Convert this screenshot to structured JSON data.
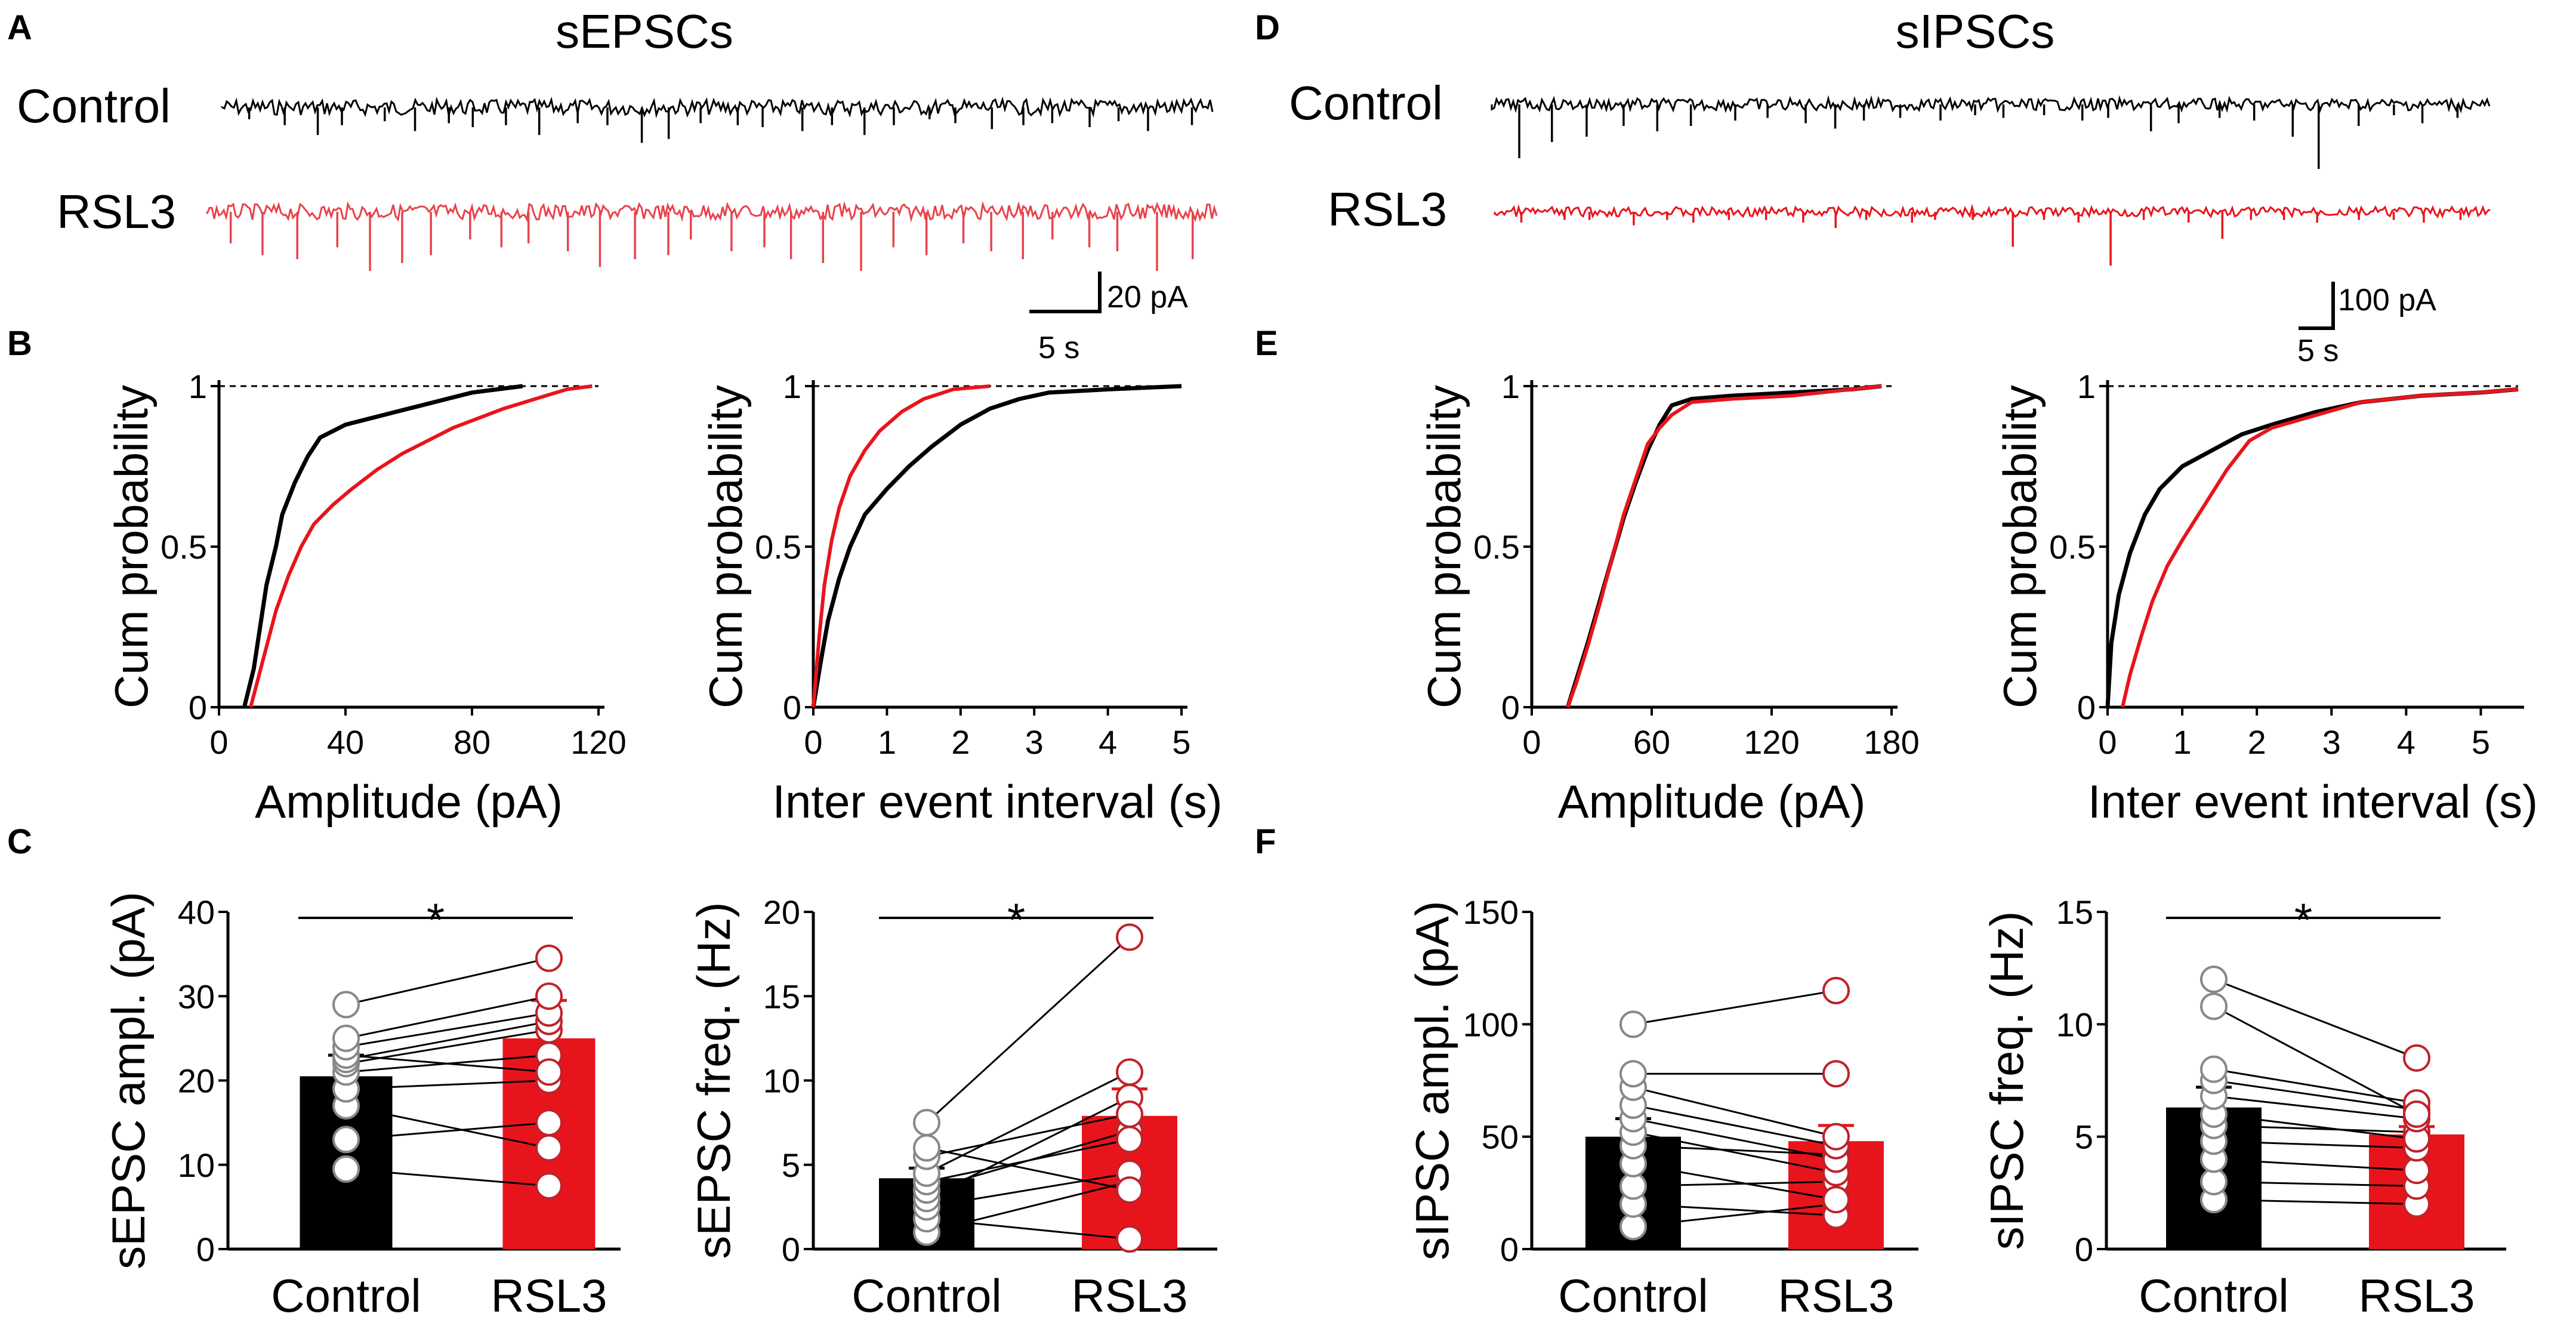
{
  "colors": {
    "control": "#000000",
    "rsl3_exc": "#e8434b",
    "rsl3_inh": "#e8141c",
    "dot_rsl3": "#c0222a"
  },
  "chart_data": [
    {
      "id": "A",
      "type": "trace",
      "panel_label": "A",
      "title": "sEPSCs",
      "traces": [
        {
          "name": "Control",
          "baseline_pA": 0,
          "event_amplitudes_pA": [
            6,
            9,
            14,
            9,
            7,
            12,
            8,
            10,
            9,
            14,
            8,
            9,
            18,
            16,
            8,
            9,
            10,
            12,
            9,
            14,
            9,
            6,
            8,
            11,
            9,
            8,
            10,
            7,
            12,
            9
          ]
        },
        {
          "name": "RSL3",
          "baseline_pA": 0,
          "event_amplitudes_pA": [
            16,
            22,
            24,
            18,
            30,
            26,
            22,
            14,
            18,
            16,
            20,
            28,
            24,
            22,
            14,
            20,
            18,
            24,
            26,
            30,
            18,
            22,
            16,
            20,
            24,
            14,
            18,
            20,
            30,
            24
          ]
        }
      ],
      "scalebar": {
        "amplitude": "20 pA",
        "time": "5 s"
      }
    },
    {
      "id": "D",
      "type": "trace",
      "panel_label": "D",
      "title": "sIPSCs",
      "traces": [
        {
          "name": "Control",
          "baseline_pA": 0,
          "event_amplitudes_pA": [
            100,
            70,
            60,
            40,
            50,
            40,
            30,
            25,
            35,
            45,
            30,
            25,
            30,
            20,
            25,
            20,
            30,
            25,
            50,
            35,
            25,
            30,
            60,
            120,
            40,
            20,
            35,
            25
          ]
        },
        {
          "name": "RSL3",
          "baseline_pA": 0,
          "event_amplitudes_pA": [
            20,
            15,
            15,
            25,
            15,
            20,
            15,
            15,
            20,
            30,
            15,
            20,
            15,
            15,
            65,
            15,
            20,
            100,
            15,
            20,
            50,
            15,
            15,
            20,
            15,
            15,
            20,
            15
          ]
        }
      ],
      "scalebar": {
        "amplitude": "100 pA",
        "time": "5 s"
      }
    },
    {
      "id": "B1",
      "type": "line",
      "panel_label": "B",
      "xlabel": "Amplitude (pA)",
      "ylabel": "Cum probability",
      "xlim": [
        0,
        120
      ],
      "ylim": [
        0,
        1
      ],
      "xticks": [
        "0",
        "40",
        "80",
        "120"
      ],
      "yticks": [
        "0",
        "0.5",
        "1"
      ],
      "series": [
        {
          "name": "Control",
          "x": [
            8,
            11,
            13,
            15,
            18,
            20,
            24,
            28,
            32,
            40,
            48,
            56,
            64,
            72,
            80,
            88,
            96
          ],
          "y": [
            0,
            0.12,
            0.25,
            0.38,
            0.5,
            0.6,
            0.7,
            0.78,
            0.84,
            0.88,
            0.9,
            0.92,
            0.94,
            0.96,
            0.98,
            0.99,
            1.0
          ]
        },
        {
          "name": "RSL3",
          "x": [
            10,
            14,
            18,
            22,
            26,
            30,
            36,
            42,
            50,
            58,
            66,
            74,
            82,
            90,
            100,
            110,
            118
          ],
          "y": [
            0,
            0.15,
            0.3,
            0.41,
            0.5,
            0.57,
            0.63,
            0.68,
            0.74,
            0.79,
            0.83,
            0.87,
            0.9,
            0.93,
            0.96,
            0.99,
            1.0
          ]
        }
      ]
    },
    {
      "id": "B2",
      "type": "line",
      "xlabel": "Inter event interval (s)",
      "ylabel": "Cum probability",
      "xlim": [
        0,
        5
      ],
      "ylim": [
        0,
        1
      ],
      "xticks": [
        "0",
        "1",
        "2",
        "3",
        "4",
        "5"
      ],
      "yticks": [
        "0",
        "0.5",
        "1"
      ],
      "series": [
        {
          "name": "Control",
          "x": [
            0,
            0.1,
            0.2,
            0.35,
            0.5,
            0.7,
            1.0,
            1.3,
            1.6,
            2.0,
            2.4,
            2.8,
            3.2,
            4.0,
            5.0
          ],
          "y": [
            0,
            0.14,
            0.27,
            0.4,
            0.5,
            0.6,
            0.68,
            0.75,
            0.81,
            0.88,
            0.93,
            0.96,
            0.98,
            0.99,
            1.0
          ]
        },
        {
          "name": "RSL3",
          "x": [
            0,
            0.08,
            0.15,
            0.25,
            0.35,
            0.5,
            0.7,
            0.9,
            1.2,
            1.5,
            1.9,
            2.4
          ],
          "y": [
            0,
            0.22,
            0.38,
            0.52,
            0.62,
            0.72,
            0.8,
            0.86,
            0.92,
            0.96,
            0.99,
            1.0
          ]
        }
      ]
    },
    {
      "id": "C1",
      "type": "bar",
      "panel_label": "C",
      "ylabel": "sEPSC ampl. (pA)",
      "ylim": [
        0,
        40
      ],
      "yticks": [
        "0",
        "10",
        "20",
        "30",
        "40"
      ],
      "categories": [
        "Control",
        "RSL3"
      ],
      "values": [
        20.5,
        25.0
      ],
      "sem": [
        2.5,
        4.5
      ],
      "paired": [
        [
          9.5,
          7.5
        ],
        [
          13,
          15
        ],
        [
          17,
          12
        ],
        [
          19,
          20
        ],
        [
          21,
          23
        ],
        [
          22,
          26
        ],
        [
          22.5,
          27
        ],
        [
          23,
          21
        ],
        [
          24,
          28
        ],
        [
          25,
          30
        ],
        [
          29,
          34.5
        ]
      ],
      "significance": "*"
    },
    {
      "id": "C2",
      "type": "bar",
      "ylabel": "sEPSC freq. (Hz)",
      "ylim": [
        0,
        20
      ],
      "yticks": [
        "0",
        "5",
        "10",
        "15",
        "20"
      ],
      "categories": [
        "Control",
        "RSL3"
      ],
      "values": [
        4.2,
        7.9
      ],
      "sem": [
        0.6,
        1.6
      ],
      "paired": [
        [
          1.0,
          4.0
        ],
        [
          1.8,
          0.6
        ],
        [
          2.5,
          4.5
        ],
        [
          3.0,
          9.0
        ],
        [
          3.5,
          7.0
        ],
        [
          4.0,
          6.5
        ],
        [
          4.5,
          10.5
        ],
        [
          5.5,
          8.0
        ],
        [
          6.0,
          3.5
        ],
        [
          7.5,
          18.5
        ]
      ],
      "significance": "*"
    },
    {
      "id": "E1",
      "type": "line",
      "panel_label": "E",
      "xlabel": "Amplitude (pA)",
      "ylabel": "Cum probability",
      "xlim": [
        0,
        180
      ],
      "ylim": [
        0,
        1
      ],
      "xticks": [
        "0",
        "60",
        "120",
        "180"
      ],
      "yticks": [
        "0",
        "0.5",
        "1"
      ],
      "series": [
        {
          "name": "Control",
          "x": [
            18,
            22,
            28,
            34,
            40,
            46,
            52,
            58,
            64,
            70,
            80,
            100,
            130,
            160,
            175
          ],
          "y": [
            0,
            0.08,
            0.2,
            0.33,
            0.46,
            0.59,
            0.7,
            0.8,
            0.88,
            0.94,
            0.96,
            0.97,
            0.98,
            0.99,
            1.0
          ]
        },
        {
          "name": "RSL3",
          "x": [
            18,
            22,
            28,
            34,
            40,
            46,
            52,
            58,
            64,
            70,
            80,
            100,
            130,
            160,
            175
          ],
          "y": [
            0,
            0.07,
            0.19,
            0.32,
            0.46,
            0.6,
            0.71,
            0.82,
            0.87,
            0.91,
            0.95,
            0.96,
            0.97,
            0.99,
            1.0
          ]
        }
      ]
    },
    {
      "id": "E2",
      "type": "line",
      "xlabel": "Inter event interval (s)",
      "ylabel": "Cum probability",
      "xlim": [
        0,
        5.5
      ],
      "ylim": [
        0,
        1
      ],
      "xticks": [
        "0",
        "1",
        "2",
        "3",
        "4",
        "5"
      ],
      "yticks": [
        "0",
        "0.5",
        "1"
      ],
      "series": [
        {
          "name": "Control",
          "x": [
            0,
            0.05,
            0.15,
            0.3,
            0.5,
            0.7,
            1.0,
            1.4,
            1.8,
            2.2,
            2.8,
            3.4,
            4.2,
            5.0,
            5.5
          ],
          "y": [
            0,
            0.2,
            0.35,
            0.48,
            0.6,
            0.68,
            0.75,
            0.8,
            0.85,
            0.88,
            0.92,
            0.95,
            0.97,
            0.98,
            0.99
          ]
        },
        {
          "name": "RSL3",
          "x": [
            0.2,
            0.3,
            0.45,
            0.6,
            0.8,
            1.0,
            1.3,
            1.6,
            1.9,
            2.2,
            2.8,
            3.4,
            4.2,
            5.0,
            5.5
          ],
          "y": [
            0,
            0.1,
            0.22,
            0.33,
            0.44,
            0.52,
            0.63,
            0.74,
            0.83,
            0.87,
            0.91,
            0.95,
            0.97,
            0.98,
            0.99
          ]
        }
      ]
    },
    {
      "id": "F1",
      "type": "bar",
      "panel_label": "F",
      "ylabel": "sIPSC ampl. (pA)",
      "ylim": [
        0,
        150
      ],
      "yticks": [
        "0",
        "50",
        "100",
        "150"
      ],
      "categories": [
        "Control",
        "RSL3"
      ],
      "values": [
        50,
        48
      ],
      "sem": [
        8,
        7
      ],
      "paired": [
        [
          10,
          20
        ],
        [
          20,
          15
        ],
        [
          28,
          30
        ],
        [
          38,
          22
        ],
        [
          46,
          42
        ],
        [
          52,
          34
        ],
        [
          58,
          40
        ],
        [
          64,
          46
        ],
        [
          72,
          50
        ],
        [
          78,
          78
        ],
        [
          100,
          115
        ]
      ],
      "significance": ""
    },
    {
      "id": "F2",
      "type": "bar",
      "ylabel": "sIPSC freq. (Hz)",
      "ylim": [
        0,
        15
      ],
      "yticks": [
        "0",
        "5",
        "10",
        "15"
      ],
      "categories": [
        "Control",
        "RSL3"
      ],
      "values": [
        6.3,
        5.1
      ],
      "sem": [
        0.9,
        0.35
      ],
      "paired": [
        [
          2.2,
          2.0
        ],
        [
          3.0,
          2.8
        ],
        [
          4.0,
          3.5
        ],
        [
          4.8,
          4.5
        ],
        [
          5.5,
          5.2
        ],
        [
          6.0,
          4.9
        ],
        [
          6.8,
          5.8
        ],
        [
          7.5,
          6.2
        ],
        [
          8.0,
          6.5
        ],
        [
          10.8,
          6.0
        ],
        [
          12.0,
          8.5
        ]
      ],
      "significance": "*"
    }
  ]
}
